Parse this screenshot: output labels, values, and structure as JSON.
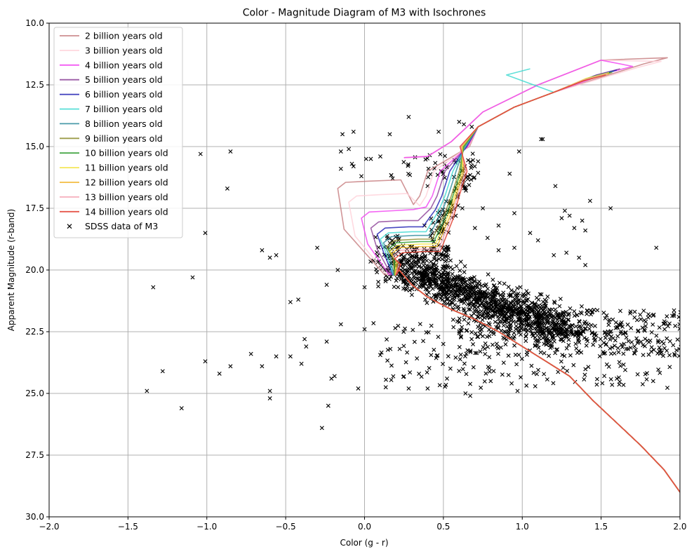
{
  "chart_data": {
    "type": "scatter",
    "title": "Color - Magnitude Diagram of M3 with Isochrones",
    "xlabel": "Color (g - r)",
    "ylabel": "Apparent Magnitude (r-band)",
    "xlim": [
      -2.0,
      2.0
    ],
    "ylim": [
      30.0,
      10.0
    ],
    "y_inverted": true,
    "grid": true,
    "legend_position": "upper-left",
    "x_ticks": [
      "−2.0",
      "−1.5",
      "−1.0",
      "−0.5",
      "0.0",
      "0.5",
      "1.0",
      "1.5",
      "2.0"
    ],
    "x_tick_values": [
      -2.0,
      -1.5,
      -1.0,
      -0.5,
      0.0,
      0.5,
      1.0,
      1.5,
      2.0
    ],
    "y_ticks": [
      "10.0",
      "12.5",
      "15.0",
      "17.5",
      "20.0",
      "22.5",
      "25.0",
      "27.5",
      "30.0"
    ],
    "y_tick_values": [
      10.0,
      12.5,
      15.0,
      17.5,
      20.0,
      22.5,
      25.0,
      27.5,
      30.0
    ],
    "isochrones": [
      {
        "name": "2 billion years old",
        "color": "#c57a7d",
        "turnoff": -0.17,
        "toy": 16.7,
        "sgb_start": 0.28,
        "tip": [
          1.92,
          11.4
        ]
      },
      {
        "name": "3 billion years old",
        "color": "#ffd0d8",
        "turnoff": -0.1,
        "toy": 17.25,
        "sgb_start": 0.32,
        "tip": [
          1.88,
          11.55
        ]
      },
      {
        "name": "4 billion years old",
        "color": "#f13ff1",
        "turnoff": -0.02,
        "toy": 17.9,
        "sgb_start": 0.36,
        "tip": [
          1.7,
          11.75
        ]
      },
      {
        "name": "5 billion years old",
        "color": "#8b3f96",
        "turnoff": 0.04,
        "toy": 18.3,
        "sgb_start": 0.39,
        "tip": [
          1.62,
          11.85
        ]
      },
      {
        "name": "6 billion years old",
        "color": "#1a1ab0",
        "turnoff": 0.08,
        "toy": 18.55,
        "sgb_start": 0.42,
        "tip": [
          1.6,
          11.9
        ]
      },
      {
        "name": "7 billion years old",
        "color": "#39d8d0",
        "turnoff": 0.1,
        "toy": 18.75,
        "sgb_start": 0.44,
        "tip": [
          1.05,
          11.85
        ]
      },
      {
        "name": "8 billion years old",
        "color": "#2a8a9a",
        "turnoff": 0.12,
        "toy": 18.9,
        "sgb_start": 0.46,
        "tip": [
          1.58,
          11.95
        ]
      },
      {
        "name": "9 billion years old",
        "color": "#8c8c2a",
        "turnoff": 0.14,
        "toy": 19.05,
        "sgb_start": 0.48,
        "tip": [
          1.57,
          12.0
        ]
      },
      {
        "name": "10 billion years old",
        "color": "#2a9a2a",
        "turnoff": 0.15,
        "toy": 19.15,
        "sgb_start": 0.49,
        "tip": [
          1.56,
          12.0
        ]
      },
      {
        "name": "11 billion years old",
        "color": "#f2e33c",
        "turnoff": 0.16,
        "toy": 19.25,
        "sgb_start": 0.5,
        "tip": [
          1.55,
          12.0
        ]
      },
      {
        "name": "12 billion years old",
        "color": "#f0b020",
        "turnoff": 0.17,
        "toy": 19.35,
        "sgb_start": 0.51,
        "tip": [
          1.55,
          12.05
        ]
      },
      {
        "name": "13 billion years old",
        "color": "#f5a0b0",
        "turnoff": 0.18,
        "toy": 19.45,
        "sgb_start": 0.52,
        "tip": [
          1.54,
          12.05
        ]
      },
      {
        "name": "14 billion years old",
        "color": "#e03a2a",
        "turnoff": 0.19,
        "toy": 19.55,
        "sgb_start": 0.53,
        "tip": [
          1.53,
          12.1
        ]
      }
    ],
    "main_sequence_tail": [
      [
        0.19,
        19.55
      ],
      [
        0.22,
        20.0
      ],
      [
        0.3,
        20.6
      ],
      [
        0.4,
        21.1
      ],
      [
        0.55,
        21.6
      ],
      [
        0.7,
        22.0
      ],
      [
        0.85,
        22.5
      ],
      [
        1.0,
        23.1
      ],
      [
        1.15,
        23.7
      ],
      [
        1.3,
        24.3
      ],
      [
        1.45,
        25.3
      ],
      [
        1.6,
        26.2
      ],
      [
        1.75,
        27.1
      ],
      [
        1.9,
        28.1
      ],
      [
        2.0,
        29.0
      ]
    ],
    "sdss_data_label": "SDSS data of M3",
    "sdss_outliers": [
      [
        -1.38,
        24.9
      ],
      [
        -1.34,
        20.7
      ],
      [
        -1.28,
        24.1
      ],
      [
        -1.16,
        25.6
      ],
      [
        -1.09,
        20.3
      ],
      [
        -1.04,
        15.3
      ],
      [
        -1.01,
        18.5
      ],
      [
        -1.01,
        23.7
      ],
      [
        -0.92,
        24.2
      ],
      [
        -0.87,
        16.7
      ],
      [
        -0.85,
        15.2
      ],
      [
        -0.85,
        23.9
      ],
      [
        -0.72,
        23.4
      ],
      [
        -0.65,
        23.9
      ],
      [
        -0.65,
        19.2
      ],
      [
        -0.6,
        19.5
      ],
      [
        -0.6,
        24.9
      ],
      [
        -0.6,
        25.2
      ],
      [
        -0.56,
        19.4
      ],
      [
        -0.56,
        23.5
      ],
      [
        -0.47,
        21.3
      ],
      [
        -0.47,
        23.5
      ],
      [
        -0.42,
        21.2
      ],
      [
        -0.4,
        23.8
      ],
      [
        -0.38,
        22.8
      ],
      [
        -0.37,
        23.1
      ],
      [
        -0.3,
        19.1
      ],
      [
        -0.27,
        26.4
      ],
      [
        -0.24,
        20.6
      ],
      [
        -0.24,
        22.9
      ],
      [
        -0.23,
        25.5
      ],
      [
        -0.21,
        24.4
      ],
      [
        -0.19,
        24.3
      ],
      [
        -0.17,
        20.0
      ],
      [
        -0.15,
        22.2
      ],
      [
        -0.14,
        14.5
      ],
      [
        -0.1,
        15.1
      ],
      [
        -0.08,
        15.7
      ],
      [
        -0.07,
        14.4
      ],
      [
        -0.04,
        24.8
      ],
      [
        -0.02,
        16.2
      ],
      [
        0.0,
        22.4
      ],
      [
        0.0,
        20.7
      ],
      [
        0.01,
        15.5
      ],
      [
        0.04,
        15.5
      ],
      [
        0.1,
        15.4
      ],
      [
        0.16,
        14.5
      ],
      [
        0.28,
        13.8
      ],
      [
        0.38,
        18.2
      ],
      [
        0.4,
        16.6
      ],
      [
        0.47,
        14.4
      ],
      [
        0.6,
        14.0
      ],
      [
        0.63,
        14.1
      ],
      [
        0.68,
        14.2
      ],
      [
        0.92,
        16.1
      ],
      [
        0.98,
        15.2
      ],
      [
        1.12,
        14.7
      ],
      [
        1.13,
        14.7
      ],
      [
        1.21,
        16.6
      ],
      [
        1.43,
        17.2
      ],
      [
        1.56,
        17.5
      ],
      [
        1.85,
        19.1
      ],
      [
        1.6,
        24.4
      ],
      [
        1.83,
        24.5
      ],
      [
        0.8,
        24.5
      ],
      [
        0.64,
        25.0
      ],
      [
        0.67,
        25.1
      ],
      [
        0.97,
        24.9
      ],
      [
        0.28,
        24.8
      ],
      [
        0.4,
        24.8
      ],
      [
        -0.07,
        15.8
      ],
      [
        -0.15,
        15.2
      ],
      [
        -0.15,
        15.9
      ],
      [
        0.75,
        17.5
      ],
      [
        0.78,
        18.7
      ],
      [
        0.95,
        17.7
      ],
      [
        0.85,
        18.2
      ],
      [
        1.05,
        18.5
      ],
      [
        1.1,
        18.8
      ],
      [
        1.25,
        17.9
      ],
      [
        1.3,
        17.8
      ],
      [
        1.38,
        18.0
      ],
      [
        1.4,
        18.4
      ],
      [
        1.27,
        17.6
      ],
      [
        1.33,
        18.3
      ],
      [
        0.62,
        17.5
      ],
      [
        0.7,
        18.3
      ],
      [
        0.85,
        19.2
      ],
      [
        0.95,
        19.1
      ],
      [
        1.2,
        19.4
      ],
      [
        1.28,
        19.3
      ],
      [
        1.36,
        19.5
      ],
      [
        1.4,
        19.8
      ]
    ]
  },
  "legend": {
    "entries": [
      "2 billion years old",
      "3 billion years old",
      "4 billion years old",
      "5 billion years old",
      "6 billion years old",
      "7 billion years old",
      "8 billion years old",
      "9 billion years old",
      "10 billion years old",
      "11 billion years old",
      "12 billion years old",
      "13 billion years old",
      "14 billion years old",
      "SDSS data of M3"
    ]
  }
}
